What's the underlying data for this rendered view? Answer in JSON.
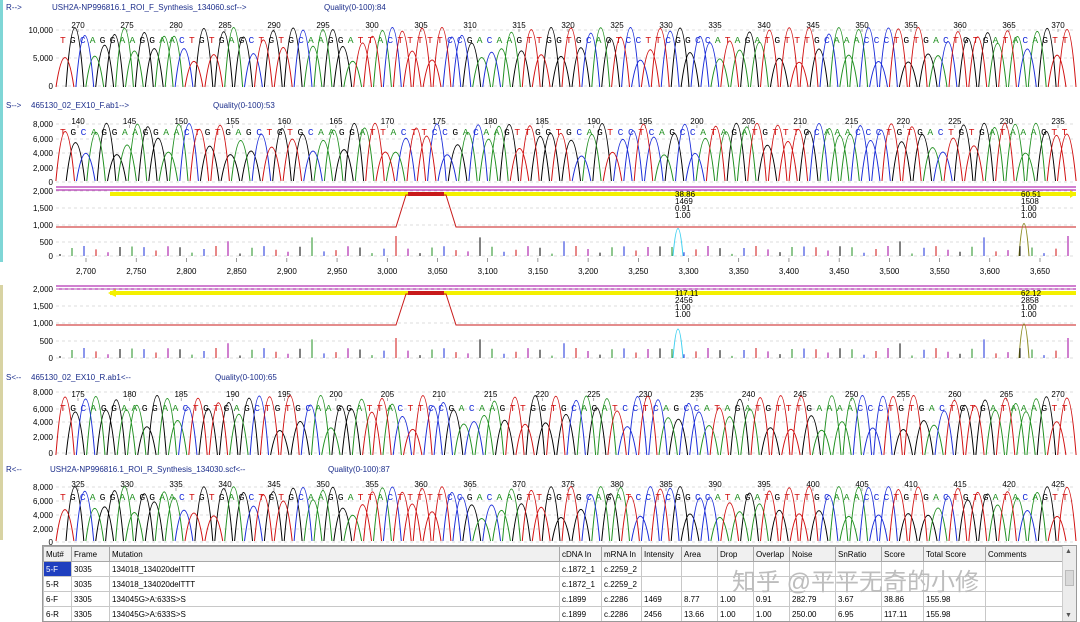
{
  "colors": {
    "A": "#1f8f1f",
    "C": "#1a2cd8",
    "G": "#000000",
    "T": "#d01010",
    "accent_cyan": "#7fd6d6",
    "accent_olive": "#d8d3a3",
    "quality_line": "#c81a1a",
    "highlight_yellow": "#f4f000",
    "frame_magenta": "#a000a0"
  },
  "panels": [
    {
      "direction": "R-->",
      "name": "USH2A-NP996816.1_ROI_F_Synthesis_134060.scf-->",
      "quality": "Quality(0-100):84",
      "yticks": [
        "10,000",
        "5,000",
        "0"
      ],
      "positions": [
        "270",
        "275",
        "280",
        "285",
        "290",
        "295",
        "300",
        "305",
        "310",
        "315",
        "320",
        "325",
        "330",
        "335",
        "340",
        "345",
        "350",
        "355",
        "360",
        "365",
        "370"
      ],
      "sequence": "TGCAGGAAGGAACTGTGAGCTGTGCAAGGATTACTTTTTCCGACAAGTTGGTGCAGTCCTTCGGCCATAGATGTTTGCAAACCCTGTGACTGTGATACAGTT"
    },
    {
      "direction": "S-->",
      "name": "465130_02_EX10_F.ab1-->",
      "quality": "Quality(0-100):53",
      "yticks": [
        "8,000",
        "6,000",
        "4,000",
        "2,000",
        "0"
      ],
      "positions": [
        "140",
        "145",
        "150",
        "155",
        "160",
        "165",
        "170",
        "175",
        "180",
        "185",
        "190",
        "195",
        "200",
        "205",
        "210",
        "215",
        "220",
        "225",
        "230",
        "235"
      ],
      "sequence": "TGCAGGAAGGAACTGTGAGCTGTGCAAGGATTACTTCCGACAAGTTGGTGCAGTCCTCAGCCATAGATGTTTGCAAACCCTGTGACTGTGATAAAGTT"
    },
    {
      "direction": "S<--",
      "name": "465130_02_EX10_R.ab1<--",
      "quality": "Quality(0-100):65",
      "yticks": [
        "8,000",
        "6,000",
        "4,000",
        "2,000",
        "0"
      ],
      "positions": [
        "175",
        "180",
        "185",
        "190",
        "195",
        "200",
        "205",
        "210",
        "215",
        "220",
        "225",
        "230",
        "235",
        "240",
        "245",
        "250",
        "255",
        "260",
        "265",
        "270"
      ],
      "sequence": "TGCAGGAAGGAACTGTGAGCTGTGCAAGGATTACTTCCGACAAGTTGGTGCAGATCCTCAGCCATAGATGTTTGAAAACCCTGTGACTGTGATAAAGTT"
    },
    {
      "direction": "R<--",
      "name": "USH2A-NP996816.1_ROI_R_Synthesis_134030.scf<--",
      "quality": "Quality(0-100):87",
      "yticks": [
        "8,000",
        "6,000",
        "4,000",
        "2,000",
        "0"
      ],
      "positions": [
        "325",
        "330",
        "335",
        "340",
        "345",
        "350",
        "355",
        "360",
        "365",
        "370",
        "375",
        "380",
        "385",
        "390",
        "395",
        "400",
        "405",
        "410",
        "415",
        "420",
        "425"
      ],
      "sequence": "TGCAGGAAGGAACTGTGAGCTGTGCAAGGATTACTTTTTCCGACAAGTTGGTGCAGATCCTCGGCCATAGATGTTTGCAAACCCTGTGACTGTGATACAGTT"
    }
  ],
  "overview": {
    "yticks": [
      "2,000",
      "1,500",
      "1,000",
      "500",
      "0"
    ],
    "xticks": [
      "2,700",
      "2,750",
      "2,800",
      "2,850",
      "2,900",
      "2,950",
      "3,000",
      "3,050",
      "3,100",
      "3,150",
      "3,200",
      "3,250",
      "3,300",
      "3,350",
      "3,400",
      "3,450",
      "3,500",
      "3,550",
      "3,600",
      "3,650"
    ],
    "top": {
      "mut1": [
        "38.86",
        "1469",
        "0.91",
        "1.00"
      ],
      "mut2": [
        "60.51",
        "1508",
        "1.00",
        "1.00"
      ]
    },
    "bottom": {
      "mut1": [
        "117.11",
        "2456",
        "1.00",
        "1.00"
      ],
      "mut2": [
        "62.12",
        "2858",
        "1.00",
        "1.00"
      ]
    }
  },
  "mutation_table": {
    "headers": [
      "Mut#",
      "Frame",
      "Mutation",
      "cDNA In",
      "mRNA In",
      "Intensity",
      "Area",
      "Drop",
      "Overlap",
      "Noise",
      "SnRatio",
      "Score",
      "Total Score",
      "Comments"
    ],
    "rows": [
      [
        "5-F",
        "3035",
        "134018_134020delTTT",
        "c.1872_1",
        "c.2259_2",
        "",
        "",
        "",
        "",
        "",
        "",
        "",
        "",
        ""
      ],
      [
        "5-R",
        "3035",
        "134018_134020delTTT",
        "c.1872_1",
        "c.2259_2",
        "",
        "",
        "",
        "",
        "",
        "",
        "",
        "",
        ""
      ],
      [
        "6-F",
        "3305",
        "134045G>A:633S>S",
        "c.1899",
        "c.2286",
        "1469",
        "8.77",
        "1.00",
        "0.91",
        "282.79",
        "3.67",
        "38.86",
        "155.98",
        ""
      ],
      [
        "6-R",
        "3305",
        "134045G>A:633S>S",
        "c.1899",
        "c.2286",
        "2456",
        "13.66",
        "1.00",
        "1.00",
        "250.00",
        "6.95",
        "117.11",
        "155.98",
        ""
      ]
    ]
  },
  "watermark": "知乎 @平平无奇的小修"
}
